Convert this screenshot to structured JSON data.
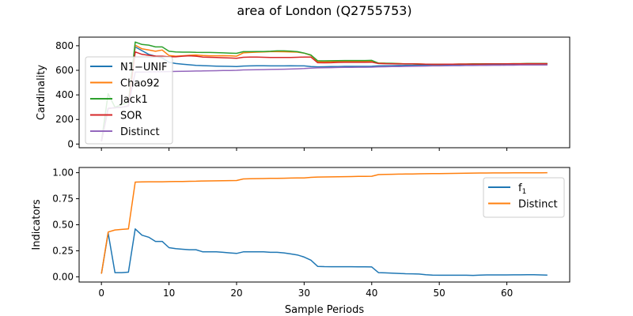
{
  "figure": {
    "title": "area of London (Q2755753)"
  },
  "colors": {
    "blue": "#1f77b4",
    "orange": "#ff7f0e",
    "green": "#2ca02c",
    "red": "#d62728",
    "purple": "#9467bd"
  },
  "chart_data": [
    {
      "type": "line",
      "title": "",
      "xlabel": "",
      "ylabel": "Cardinality",
      "xlim": [
        -3.3,
        69.3
      ],
      "ylim": [
        -30,
        870
      ],
      "xticks": [
        0,
        10,
        20,
        30,
        40,
        50,
        60
      ],
      "yticks": [
        0,
        200,
        400,
        600,
        800
      ],
      "show_xtick_labels": false,
      "grid": false,
      "legend": "upper-left",
      "x": [
        0,
        1,
        2,
        3,
        4,
        5,
        6,
        7,
        8,
        9,
        10,
        11,
        12,
        13,
        14,
        15,
        16,
        17,
        18,
        19,
        20,
        21,
        22,
        23,
        24,
        25,
        26,
        27,
        28,
        29,
        30,
        31,
        32,
        33,
        34,
        35,
        36,
        37,
        38,
        39,
        40,
        41,
        42,
        43,
        44,
        45,
        46,
        47,
        48,
        49,
        50,
        51,
        52,
        53,
        54,
        55,
        56,
        57,
        58,
        59,
        60,
        61,
        62,
        63,
        64,
        65,
        66
      ],
      "series": [
        {
          "name": "N1−UNIF",
          "color_key": "blue",
          "values": [
            22,
            290,
            295,
            300,
            310,
            790,
            760,
            730,
            715,
            700,
            665,
            655,
            650,
            645,
            640,
            638,
            636,
            634,
            633,
            632,
            630,
            635,
            636,
            637,
            637,
            636,
            636,
            636,
            637,
            636,
            636,
            631,
            628,
            629,
            630,
            631,
            632,
            632,
            632,
            632,
            633,
            636,
            637,
            638,
            639,
            640,
            640,
            641,
            641,
            642,
            642,
            643,
            643,
            644,
            644,
            645,
            645,
            646,
            646,
            646,
            647,
            647,
            648,
            648,
            648,
            648,
            648
          ]
        },
        {
          "name": "Chao92",
          "color_key": "orange",
          "values": [
            22,
            290,
            295,
            300,
            310,
            805,
            775,
            765,
            755,
            765,
            720,
            715,
            718,
            722,
            725,
            720,
            718,
            718,
            719,
            718,
            715,
            742,
            745,
            748,
            750,
            752,
            752,
            751,
            750,
            748,
            740,
            722,
            670,
            668,
            670,
            671,
            672,
            672,
            672,
            672,
            673,
            660,
            658,
            657,
            655,
            653,
            653,
            652,
            650,
            649,
            649,
            650,
            650,
            651,
            651,
            652,
            652,
            652,
            653,
            653,
            653,
            654,
            654,
            654,
            654,
            654,
            654
          ]
        },
        {
          "name": "Jack1",
          "color_key": "green",
          "values": [
            22,
            410,
            300,
            320,
            340,
            830,
            810,
            805,
            790,
            790,
            755,
            750,
            748,
            748,
            746,
            745,
            745,
            744,
            742,
            740,
            738,
            752,
            752,
            753,
            753,
            755,
            758,
            758,
            756,
            752,
            740,
            725,
            678,
            677,
            678,
            679,
            680,
            680,
            680,
            680,
            681,
            658,
            657,
            656,
            654,
            652,
            652,
            651,
            650,
            649,
            649,
            650,
            650,
            651,
            651,
            652,
            652,
            653,
            653,
            653,
            653,
            654,
            654,
            655,
            655,
            655,
            655
          ]
        },
        {
          "name": "SOR",
          "color_key": "red",
          "values": [
            22,
            290,
            295,
            300,
            310,
            750,
            730,
            722,
            716,
            715,
            710,
            710,
            715,
            718,
            715,
            708,
            706,
            704,
            702,
            700,
            698,
            706,
            708,
            708,
            706,
            705,
            705,
            704,
            704,
            706,
            708,
            708,
            662,
            661,
            662,
            664,
            665,
            665,
            665,
            665,
            666,
            655,
            654,
            653,
            652,
            652,
            652,
            651,
            650,
            649,
            649,
            650,
            650,
            651,
            651,
            651,
            651,
            652,
            652,
            652,
            653,
            653,
            653,
            654,
            654,
            654,
            654
          ]
        },
        {
          "name": "Distinct",
          "color_key": "purple",
          "values": [
            22,
            290,
            295,
            300,
            310,
            585,
            586,
            587,
            588,
            589,
            590,
            591,
            592,
            593,
            594,
            595,
            596,
            597,
            598,
            599,
            600,
            603,
            604,
            605,
            606,
            607,
            608,
            609,
            610,
            612,
            614,
            618,
            620,
            621,
            622,
            623,
            624,
            624,
            625,
            625,
            626,
            628,
            629,
            630,
            631,
            632,
            633,
            634,
            635,
            636,
            636,
            637,
            638,
            638,
            639,
            639,
            640,
            640,
            641,
            641,
            642,
            642,
            643,
            643,
            643,
            644,
            644
          ]
        }
      ]
    },
    {
      "type": "line",
      "title": "",
      "xlabel": "Sample Periods",
      "ylabel": "Indicators",
      "xlim": [
        -3.3,
        69.3
      ],
      "ylim": [
        -0.05,
        1.05
      ],
      "xticks": [
        0,
        10,
        20,
        30,
        40,
        50,
        60
      ],
      "yticks": [
        0.0,
        0.25,
        0.5,
        0.75,
        1.0
      ],
      "ytick_labels": [
        "0.00",
        "0.25",
        "0.50",
        "0.75",
        "1.00"
      ],
      "show_xtick_labels": true,
      "grid": false,
      "legend": "upper-right",
      "x": [
        0,
        1,
        2,
        3,
        4,
        5,
        6,
        7,
        8,
        9,
        10,
        11,
        12,
        13,
        14,
        15,
        16,
        17,
        18,
        19,
        20,
        21,
        22,
        23,
        24,
        25,
        26,
        27,
        28,
        29,
        30,
        31,
        32,
        33,
        34,
        35,
        36,
        37,
        38,
        39,
        40,
        41,
        42,
        43,
        44,
        45,
        46,
        47,
        48,
        49,
        50,
        51,
        52,
        53,
        54,
        55,
        56,
        57,
        58,
        59,
        60,
        61,
        62,
        63,
        64,
        65,
        66
      ],
      "series": [
        {
          "name": "f",
          "name_sub": "1",
          "color_key": "blue",
          "values": [
            0.03,
            0.42,
            0.04,
            0.04,
            0.045,
            0.46,
            0.4,
            0.38,
            0.34,
            0.34,
            0.28,
            0.27,
            0.265,
            0.26,
            0.26,
            0.24,
            0.24,
            0.24,
            0.235,
            0.23,
            0.225,
            0.24,
            0.24,
            0.24,
            0.24,
            0.235,
            0.235,
            0.23,
            0.22,
            0.21,
            0.19,
            0.16,
            0.1,
            0.098,
            0.097,
            0.097,
            0.097,
            0.097,
            0.096,
            0.096,
            0.095,
            0.04,
            0.038,
            0.035,
            0.033,
            0.03,
            0.029,
            0.027,
            0.02,
            0.016,
            0.015,
            0.015,
            0.015,
            0.015,
            0.015,
            0.014,
            0.017,
            0.018,
            0.018,
            0.018,
            0.018,
            0.019,
            0.019,
            0.02,
            0.02,
            0.018,
            0.017
          ]
        },
        {
          "name": "Distinct",
          "color_key": "orange",
          "values": [
            0.03,
            0.43,
            0.45,
            0.455,
            0.46,
            0.91,
            0.912,
            0.913,
            0.913,
            0.913,
            0.914,
            0.915,
            0.916,
            0.917,
            0.918,
            0.92,
            0.921,
            0.922,
            0.923,
            0.924,
            0.925,
            0.94,
            0.942,
            0.943,
            0.944,
            0.945,
            0.946,
            0.947,
            0.948,
            0.949,
            0.95,
            0.955,
            0.958,
            0.959,
            0.96,
            0.961,
            0.962,
            0.963,
            0.964,
            0.965,
            0.966,
            0.982,
            0.984,
            0.985,
            0.986,
            0.987,
            0.988,
            0.989,
            0.99,
            0.991,
            0.991,
            0.992,
            0.993,
            0.994,
            0.995,
            0.996,
            0.997,
            0.997,
            0.998,
            0.998,
            0.998,
            0.999,
            0.999,
            0.999,
            0.999,
            0.999,
            1.0
          ]
        }
      ]
    }
  ]
}
